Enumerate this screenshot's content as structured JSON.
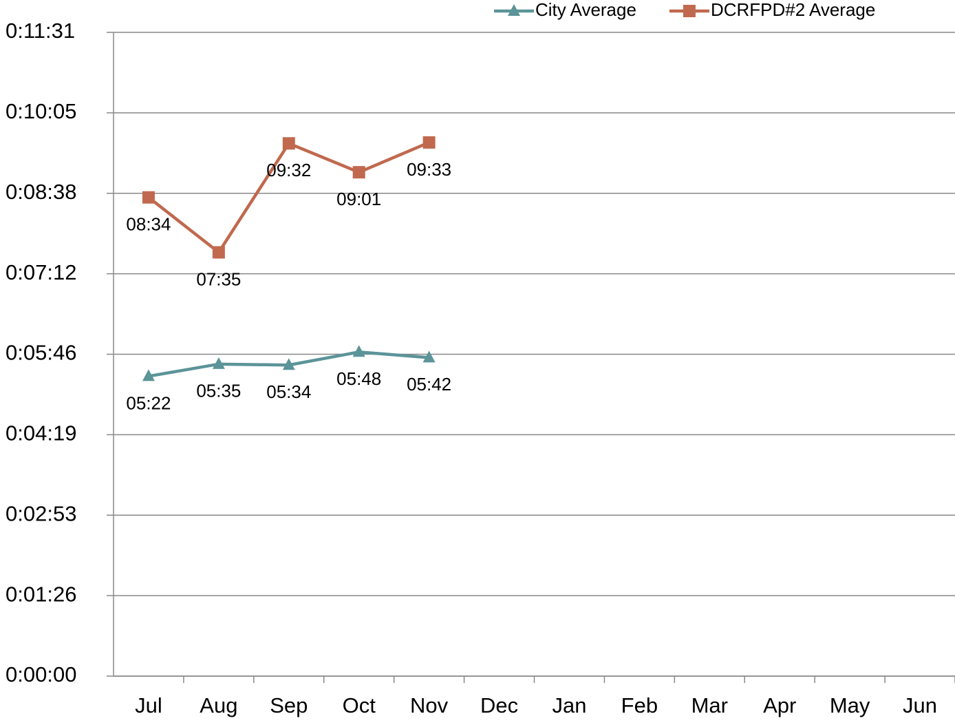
{
  "chart_data": {
    "type": "line",
    "categories": [
      "Jul",
      "Aug",
      "Sep",
      "Oct",
      "Nov",
      "Dec",
      "Jan",
      "Feb",
      "Mar",
      "Apr",
      "May",
      "Jun"
    ],
    "series": [
      {
        "name": "City Average",
        "color": "#5b9499",
        "marker": "triangle",
        "values": [
          322,
          335,
          334,
          348,
          342,
          null,
          null,
          null,
          null,
          null,
          null,
          null
        ],
        "value_labels": [
          "05:22",
          "05:35",
          "05:34",
          "05:48",
          "05:42",
          null,
          null,
          null,
          null,
          null,
          null,
          null
        ]
      },
      {
        "name": "DCRFPD#2 Average",
        "color": "#c0694e",
        "marker": "square",
        "values": [
          514,
          455,
          572,
          541,
          573,
          null,
          null,
          null,
          null,
          null,
          null,
          null
        ],
        "value_labels": [
          "08:34",
          "07:35",
          "09:32",
          "09:01",
          "09:33",
          null,
          null,
          null,
          null,
          null,
          null,
          null
        ]
      }
    ],
    "ylim": [
      0,
      691.2
    ],
    "yticks": [
      {
        "value": 0,
        "label": "0:00:00"
      },
      {
        "value": 86.4,
        "label": "0:01:26"
      },
      {
        "value": 172.8,
        "label": "0:02:53"
      },
      {
        "value": 259.2,
        "label": "0:04:19"
      },
      {
        "value": 345.6,
        "label": "0:05:46"
      },
      {
        "value": 432,
        "label": "0:07:12"
      },
      {
        "value": 518.4,
        "label": "0:08:38"
      },
      {
        "value": 604.8,
        "label": "0:10:05"
      },
      {
        "value": 691.2,
        "label": "0:11:31"
      }
    ],
    "grid": true,
    "legend": "top-right"
  }
}
